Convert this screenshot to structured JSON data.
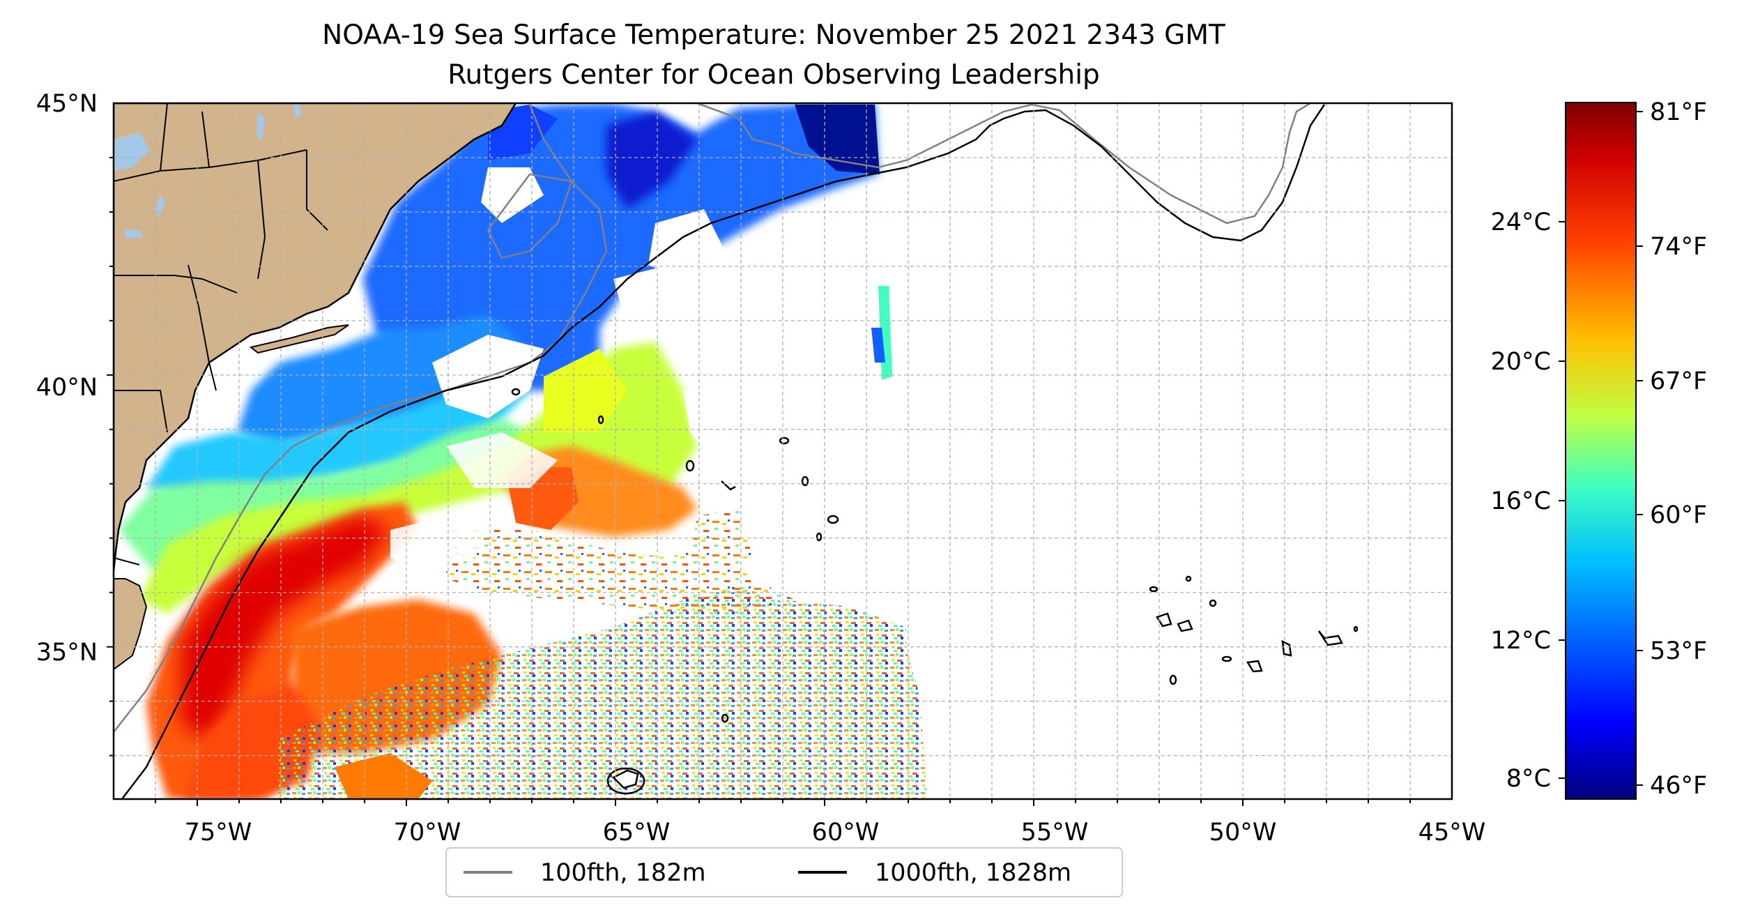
{
  "figure": {
    "title_line1": "NOAA-19 Sea Surface Temperature: November 25 2021 2343 GMT",
    "title_line2": "Rutgers Center for Ocean Observing Leadership"
  },
  "map": {
    "lon_ticks": [
      "75°W",
      "70°W",
      "65°W",
      "60°W",
      "55°W",
      "50°W",
      "45°W"
    ],
    "lat_ticks": [
      "45°N",
      "40°N",
      "35°N"
    ],
    "extent": {
      "lon": [
        -77,
        -45
      ],
      "lat": [
        32.2,
        45
      ]
    },
    "land_color": "#d2b48c",
    "lake_color": "#a6c8e8",
    "gridlines": true,
    "gridline_style": "dashed gray"
  },
  "colorbar": {
    "colormap": "jet",
    "left_ticks": [
      "24°C",
      "20°C",
      "16°C",
      "12°C",
      "8°C"
    ],
    "right_ticks": [
      "81°F",
      "74°F",
      "67°F",
      "60°F",
      "53°F",
      "46°F"
    ],
    "range_f": [
      45,
      82
    ],
    "colors": [
      "#00007f",
      "#0000ff",
      "#007fff",
      "#00ffff",
      "#7fff7f",
      "#ffff00",
      "#ff7f00",
      "#ff0000",
      "#7f0000"
    ]
  },
  "legend": {
    "placement": "bottom-center",
    "items": [
      {
        "label": "100fth, 182m",
        "color": "#808080"
      },
      {
        "label": "1000fth, 1828m",
        "color": "#000000"
      }
    ]
  }
}
